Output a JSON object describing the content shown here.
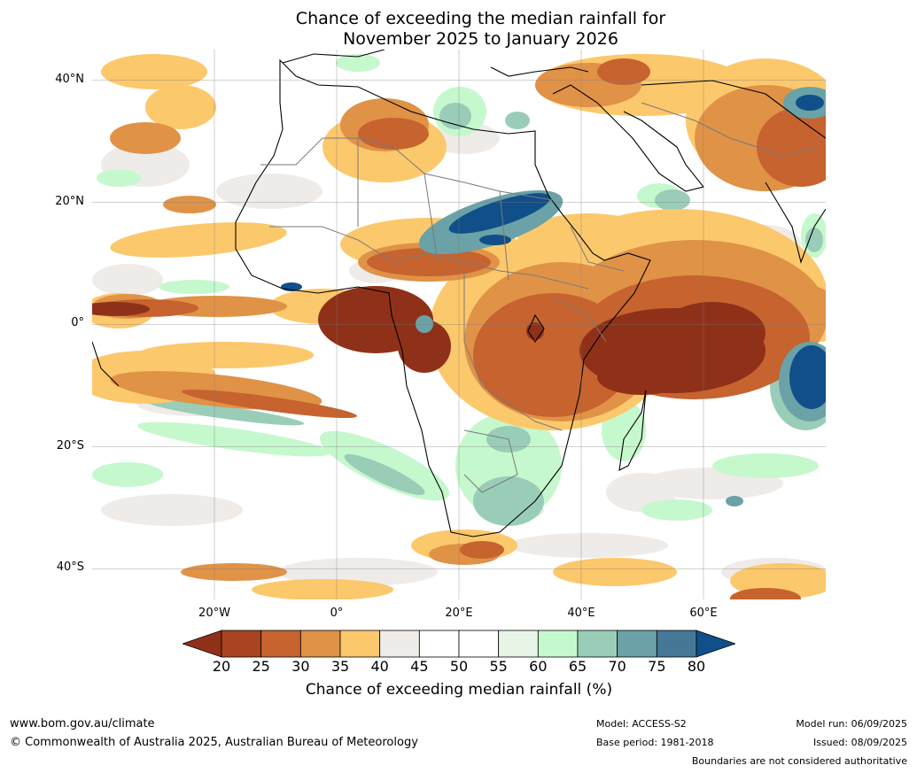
{
  "title": {
    "line1": "Chance of exceeding the median rainfall for",
    "line2": "November 2025 to January 2026"
  },
  "map": {
    "lat_labels": [
      "40°N",
      "20°N",
      "0°",
      "20°S",
      "40°S"
    ],
    "lon_labels": [
      "20°W",
      "0°",
      "20°E",
      "40°E",
      "60°E"
    ],
    "extent": {
      "lon_min": -40,
      "lon_max": 80,
      "lat_min": -45,
      "lat_max": 45
    },
    "grid_lats": [
      40,
      20,
      0,
      -20,
      -40
    ],
    "grid_lons": [
      -20,
      0,
      20,
      40,
      60
    ]
  },
  "colorbar": {
    "ticks": [
      "20",
      "25",
      "30",
      "35",
      "40",
      "45",
      "50",
      "55",
      "60",
      "65",
      "70",
      "75",
      "80"
    ],
    "colors": [
      "#8f3119",
      "#a8441f",
      "#c6632f",
      "#e09247",
      "#fcc86c",
      "#efebe8",
      "#ffffff",
      "#ffffff",
      "#e6f5e6",
      "#c6f8cd",
      "#9acdb8",
      "#6aa2a7",
      "#457896",
      "#104f8a"
    ],
    "label": "Chance of exceeding median rainfall (%)"
  },
  "footer": {
    "website": "www.bom.gov.au/climate",
    "copyright": "© Commonwealth of Australia 2025, Australian Bureau of Meteorology",
    "model": "Model: ACCESS-S2",
    "base_period": "Base period: 1981-2018",
    "model_run": "Model run: 06/09/2025",
    "issued": "Issued: 08/09/2025",
    "disclaimer": "Boundaries are not considered authoritative"
  }
}
